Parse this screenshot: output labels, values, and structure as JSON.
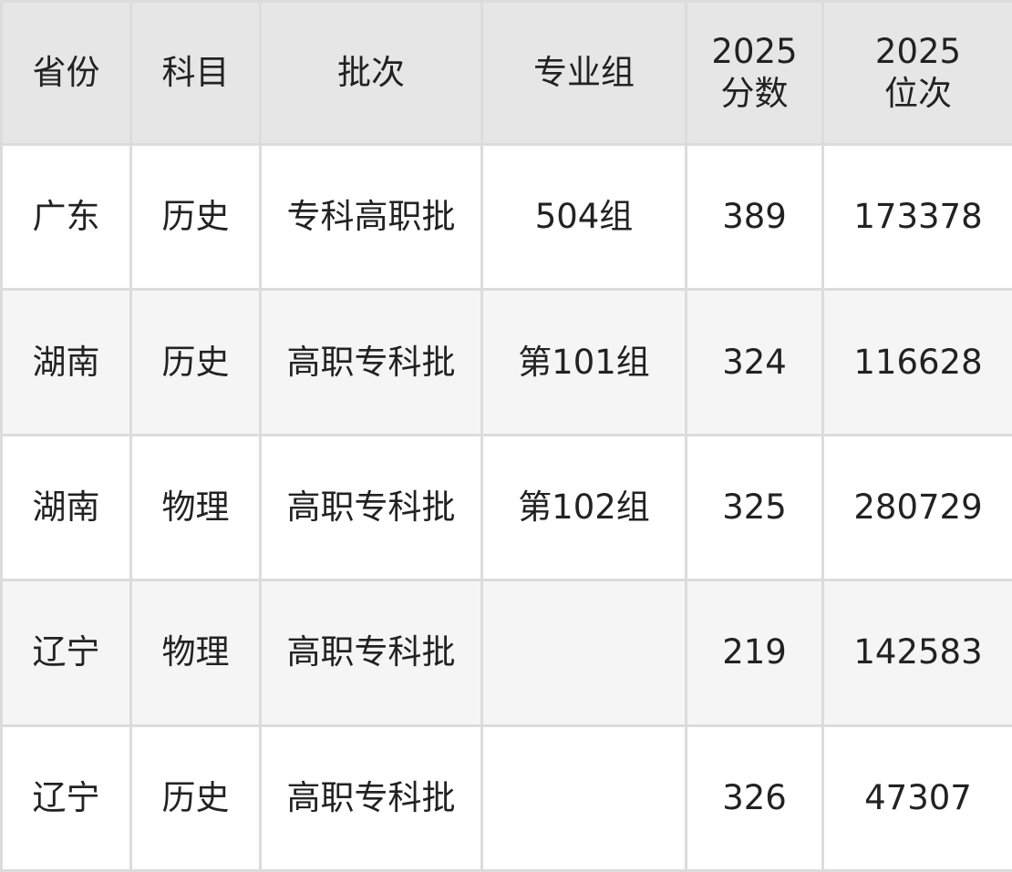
{
  "table": {
    "headers": [
      "省份",
      "科目",
      "批次",
      "专业组",
      "2025分数",
      "2025位次"
    ],
    "header_lines": [
      [
        "省份"
      ],
      [
        "科目"
      ],
      [
        "批次"
      ],
      [
        "专业组"
      ],
      [
        "2025",
        "分数"
      ],
      [
        "2025",
        "位次"
      ]
    ],
    "rows": [
      [
        "广东",
        "历史",
        "专科高职批",
        "504组",
        "389",
        "173378"
      ],
      [
        "湖南",
        "历史",
        "高职专科批",
        "第101组",
        "324",
        "116628"
      ],
      [
        "湖南",
        "物理",
        "高职专科批",
        "第102组",
        "325",
        "280729"
      ],
      [
        "辽宁",
        "物理",
        "高职专科批",
        "",
        "219",
        "142583"
      ],
      [
        "辽宁",
        "历史",
        "高职专科批",
        "",
        "326",
        "47307"
      ]
    ]
  }
}
